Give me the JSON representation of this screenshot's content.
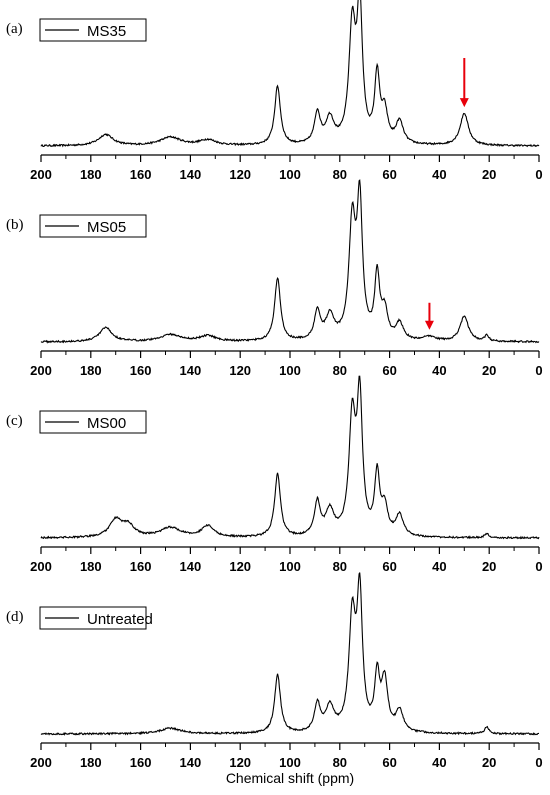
{
  "chart_data": {
    "type": "line",
    "xlabel": "Chemical shift (ppm)",
    "xlim": [
      200,
      0
    ],
    "x_reversed": true,
    "x_ticks": [
      200,
      180,
      160,
      140,
      120,
      100,
      80,
      60,
      40,
      20,
      0
    ],
    "panels": [
      {
        "label": "(a)",
        "legend": "MS35",
        "peaks": [
          {
            "ppm": 174,
            "h": 0.08,
            "w": 3.5
          },
          {
            "ppm": 148,
            "h": 0.06,
            "w": 5
          },
          {
            "ppm": 133,
            "h": 0.04,
            "w": 4
          },
          {
            "ppm": 105,
            "h": 0.42,
            "w": 1.4
          },
          {
            "ppm": 89,
            "h": 0.22,
            "w": 1.4
          },
          {
            "ppm": 84,
            "h": 0.18,
            "w": 2
          },
          {
            "ppm": 75,
            "h": 0.82,
            "w": 1.6
          },
          {
            "ppm": 72,
            "h": 0.95,
            "w": 1.3
          },
          {
            "ppm": 65,
            "h": 0.48,
            "w": 1.2
          },
          {
            "ppm": 62,
            "h": 0.22,
            "w": 1.5
          },
          {
            "ppm": 56,
            "h": 0.16,
            "w": 1.8
          },
          {
            "ppm": 30,
            "h": 0.23,
            "w": 2
          }
        ],
        "arrow_ppm": 30
      },
      {
        "label": "(b)",
        "legend": "MS05",
        "peaks": [
          {
            "ppm": 174,
            "h": 0.1,
            "w": 3
          },
          {
            "ppm": 148,
            "h": 0.05,
            "w": 5
          },
          {
            "ppm": 133,
            "h": 0.04,
            "w": 4
          },
          {
            "ppm": 105,
            "h": 0.45,
            "w": 1.4
          },
          {
            "ppm": 89,
            "h": 0.21,
            "w": 1.4
          },
          {
            "ppm": 84,
            "h": 0.17,
            "w": 2
          },
          {
            "ppm": 75,
            "h": 0.82,
            "w": 1.6
          },
          {
            "ppm": 72,
            "h": 0.95,
            "w": 1.3
          },
          {
            "ppm": 65,
            "h": 0.45,
            "w": 1.2
          },
          {
            "ppm": 62,
            "h": 0.2,
            "w": 1.5
          },
          {
            "ppm": 56,
            "h": 0.12,
            "w": 1.8
          },
          {
            "ppm": 44,
            "h": 0.03,
            "w": 3
          },
          {
            "ppm": 30,
            "h": 0.18,
            "w": 2
          },
          {
            "ppm": 21,
            "h": 0.04,
            "w": 1
          }
        ],
        "arrow_ppm": 44
      },
      {
        "label": "(c)",
        "legend": "MS00",
        "peaks": [
          {
            "ppm": 170,
            "h": 0.12,
            "w": 3
          },
          {
            "ppm": 165,
            "h": 0.08,
            "w": 3
          },
          {
            "ppm": 148,
            "h": 0.07,
            "w": 5
          },
          {
            "ppm": 133,
            "h": 0.08,
            "w": 3
          },
          {
            "ppm": 105,
            "h": 0.45,
            "w": 1.4
          },
          {
            "ppm": 89,
            "h": 0.24,
            "w": 1.4
          },
          {
            "ppm": 84,
            "h": 0.18,
            "w": 2
          },
          {
            "ppm": 75,
            "h": 0.82,
            "w": 1.6
          },
          {
            "ppm": 72,
            "h": 0.95,
            "w": 1.3
          },
          {
            "ppm": 65,
            "h": 0.43,
            "w": 1.2
          },
          {
            "ppm": 62,
            "h": 0.2,
            "w": 1.5
          },
          {
            "ppm": 56,
            "h": 0.15,
            "w": 1.8
          },
          {
            "ppm": 21,
            "h": 0.03,
            "w": 1
          }
        ],
        "arrow_ppm": null
      },
      {
        "label": "(d)",
        "legend": "Untreated",
        "peaks": [
          {
            "ppm": 148,
            "h": 0.04,
            "w": 5
          },
          {
            "ppm": 105,
            "h": 0.42,
            "w": 1.4
          },
          {
            "ppm": 89,
            "h": 0.2,
            "w": 1.4
          },
          {
            "ppm": 84,
            "h": 0.18,
            "w": 2
          },
          {
            "ppm": 75,
            "h": 0.8,
            "w": 1.6
          },
          {
            "ppm": 72,
            "h": 0.95,
            "w": 1.3
          },
          {
            "ppm": 65,
            "h": 0.38,
            "w": 1.2
          },
          {
            "ppm": 62,
            "h": 0.36,
            "w": 1.5
          },
          {
            "ppm": 56,
            "h": 0.15,
            "w": 1.8
          },
          {
            "ppm": 21,
            "h": 0.05,
            "w": 1
          }
        ],
        "arrow_ppm": null
      }
    ],
    "colors": {
      "line": "#000000",
      "arrow": "#e8000b"
    }
  }
}
